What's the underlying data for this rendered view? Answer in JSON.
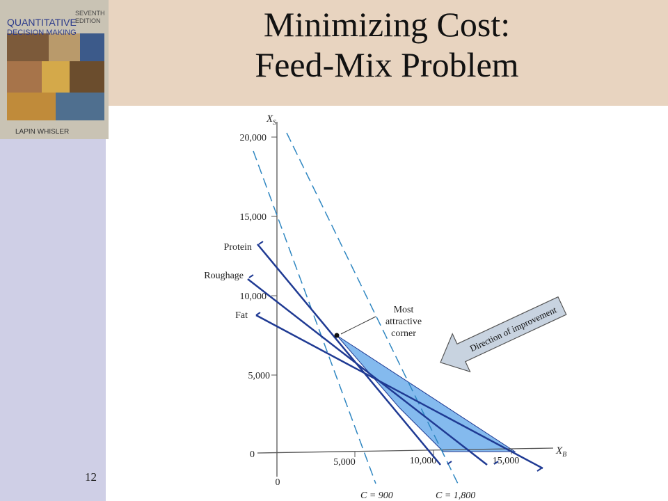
{
  "slide": {
    "title_line1": "Minimizing Cost:",
    "title_line2": "Feed-Mix Problem",
    "number": "12"
  },
  "book_cover": {
    "title_line1": "QUANTITATIVE",
    "title_line2": "DECISION MAKING",
    "edition_line1": "SEVENTH",
    "edition_line2": "EDITION",
    "authors": "LAPIN   WHISLER"
  },
  "diagram": {
    "y_axis_label": "X",
    "y_axis_subscript": "S",
    "x_axis_label": "X",
    "x_axis_subscript": "B",
    "y_ticks": [
      "20,000",
      "15,000",
      "10,000",
      "5,000",
      "0"
    ],
    "x_ticks": [
      "0",
      "5,000",
      "10,000",
      "15,000"
    ],
    "constraints": [
      "Protein",
      "Roughage",
      "Fat"
    ],
    "cost_lines": [
      "C = 900",
      "C = 1,800"
    ],
    "annotation": [
      "Most",
      "attractive",
      "corner"
    ],
    "arrow_label": "Direction of improvement",
    "colors": {
      "constraint_line": "#1f3a93",
      "feasible_region": "#5ba3e8",
      "cost_line": "#2e86c1",
      "arrow_fill": "#c8d3e0"
    }
  }
}
